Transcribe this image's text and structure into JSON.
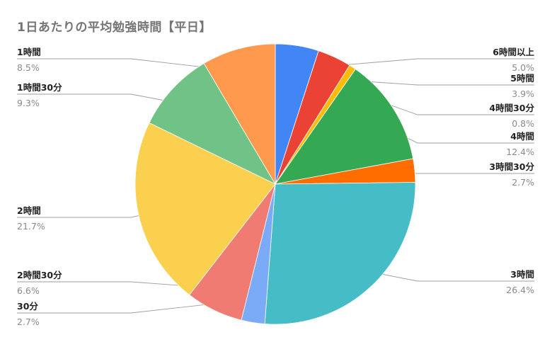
{
  "chart_data": {
    "type": "pie",
    "title": "1日あたりの平均勉強時間【平日】",
    "slices": [
      {
        "label": "6時間以上",
        "value": 5.0,
        "pct_text": "5.0%",
        "color": "#4285f4",
        "side": "right"
      },
      {
        "label": "5時間",
        "value": 3.9,
        "pct_text": "3.9%",
        "color": "#ea4335",
        "side": "right"
      },
      {
        "label": "4時間30分",
        "value": 0.8,
        "pct_text": "0.8%",
        "color": "#fbbc04",
        "side": "right"
      },
      {
        "label": "4時間",
        "value": 12.4,
        "pct_text": "12.4%",
        "color": "#34a853",
        "side": "right"
      },
      {
        "label": "3時間30分",
        "value": 2.7,
        "pct_text": "2.7%",
        "color": "#ff6d01",
        "side": "right"
      },
      {
        "label": "3時間",
        "value": 26.4,
        "pct_text": "26.4%",
        "color": "#46bdc6",
        "side": "right"
      },
      {
        "label": "30分",
        "value": 2.7,
        "pct_text": "2.7%",
        "color": "#7baaf7",
        "side": "left"
      },
      {
        "label": "2時間30分",
        "value": 6.6,
        "pct_text": "6.6%",
        "color": "#f07b72",
        "side": "left"
      },
      {
        "label": "2時間",
        "value": 21.7,
        "pct_text": "21.7%",
        "color": "#fcd04f",
        "side": "left"
      },
      {
        "label": "1時間30分",
        "value": 9.3,
        "pct_text": "9.3%",
        "color": "#71c287",
        "side": "left"
      },
      {
        "label": "1時間",
        "value": 8.5,
        "pct_text": "8.5%",
        "color": "#ff994d",
        "side": "left"
      }
    ]
  }
}
